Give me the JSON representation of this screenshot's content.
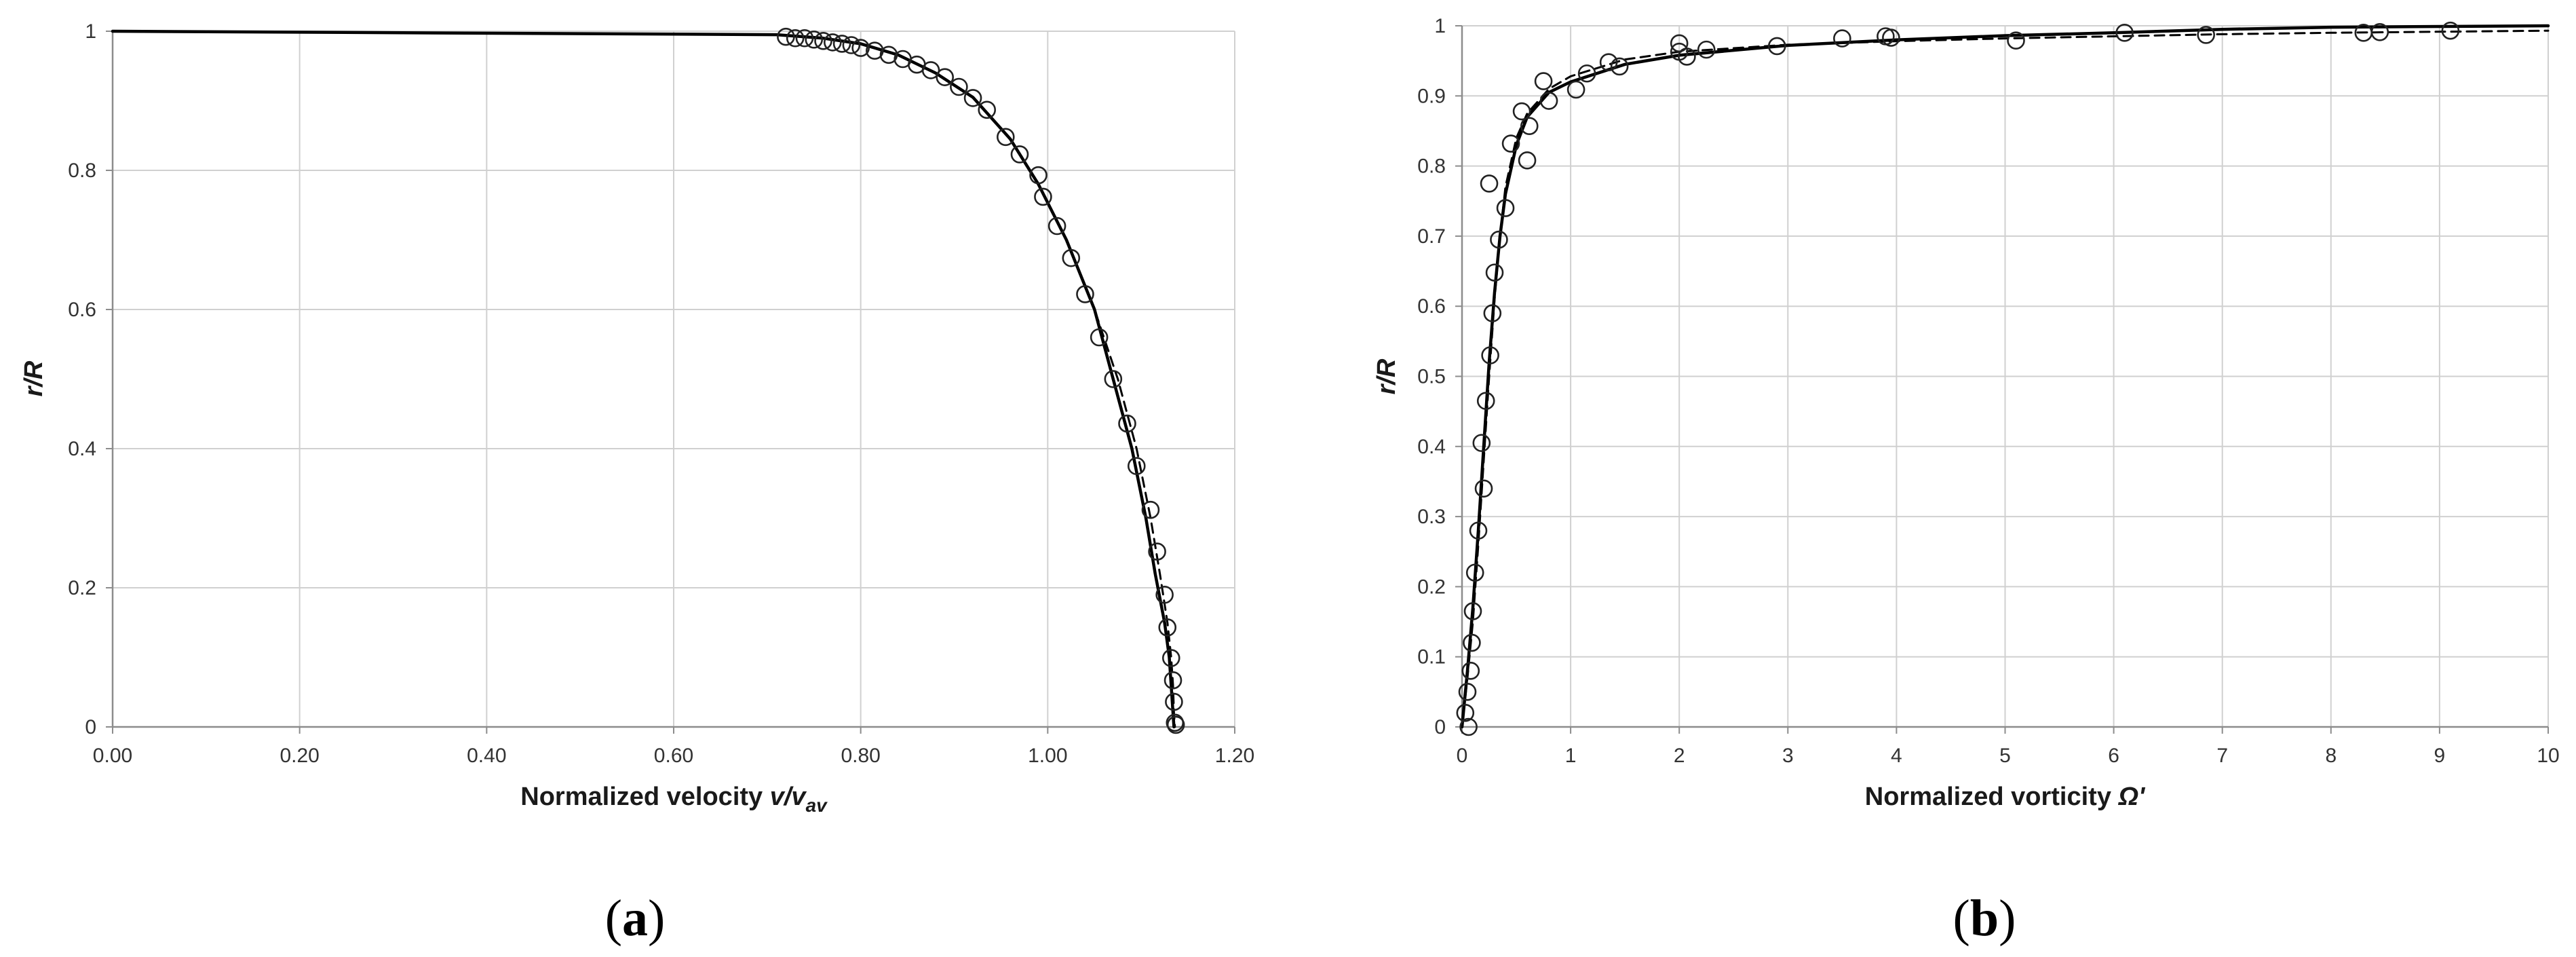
{
  "captions": [
    "(a)",
    "(b)"
  ],
  "chart_data": [
    {
      "type": "line",
      "panel": "a",
      "xlabel": "Normalized velocity ",
      "xlabel_italic": "v/v",
      "xlabel_sub": "av",
      "ylabel": "r/R",
      "xlim": [
        0,
        1.2
      ],
      "ylim": [
        0,
        1
      ],
      "xticks": [
        "0.00",
        "0.20",
        "0.40",
        "0.60",
        "0.80",
        "1.00",
        "1.20"
      ],
      "xtick_values": [
        0,
        0.2,
        0.4,
        0.6,
        0.8,
        1.0,
        1.2
      ],
      "yticks": [
        "0",
        "0.2",
        "0.4",
        "0.6",
        "0.8",
        "1"
      ],
      "ytick_values": [
        0,
        0.2,
        0.4,
        0.6,
        0.8,
        1.0
      ],
      "grid": true,
      "series": [
        {
          "style": "solid",
          "x": [
            0,
            0.71,
            0.76,
            0.8,
            0.84,
            0.88,
            0.92,
            0.96,
            0.99,
            1.02,
            1.05,
            1.07,
            1.09,
            1.105,
            1.115,
            1.125,
            1.13,
            1.132,
            1.134,
            1.135
          ],
          "y": [
            1.0,
            0.995,
            0.99,
            0.982,
            0.966,
            0.94,
            0.905,
            0.845,
            0.78,
            0.7,
            0.6,
            0.5,
            0.4,
            0.3,
            0.22,
            0.15,
            0.1,
            0.06,
            0.02,
            0.0
          ]
        },
        {
          "style": "dashed",
          "x": [
            0,
            0.71,
            0.76,
            0.8,
            0.84,
            0.88,
            0.92,
            0.96,
            0.99,
            1.02,
            1.05,
            1.075,
            1.095,
            1.11,
            1.12,
            1.128,
            1.132,
            1.134,
            1.135,
            1.136
          ],
          "y": [
            1.0,
            0.995,
            0.99,
            0.982,
            0.966,
            0.94,
            0.905,
            0.845,
            0.78,
            0.7,
            0.6,
            0.5,
            0.4,
            0.3,
            0.22,
            0.15,
            0.1,
            0.06,
            0.02,
            0.0
          ]
        },
        {
          "style": "markers",
          "x": [
            0.72,
            0.73,
            0.74,
            0.75,
            0.76,
            0.77,
            0.78,
            0.79,
            0.8,
            0.815,
            0.83,
            0.845,
            0.86,
            0.875,
            0.89,
            0.905,
            0.92,
            0.935,
            0.955,
            0.97,
            0.99,
            0.995,
            1.01,
            1.025,
            1.04,
            1.055,
            1.07,
            1.085,
            1.095,
            1.11,
            1.117,
            1.125,
            1.128,
            1.132,
            1.134,
            1.135,
            1.136,
            1.137
          ],
          "y": [
            0.992,
            0.99,
            0.99,
            0.988,
            0.986,
            0.984,
            0.982,
            0.98,
            0.976,
            0.972,
            0.966,
            0.96,
            0.952,
            0.944,
            0.934,
            0.92,
            0.904,
            0.887,
            0.848,
            0.823,
            0.793,
            0.762,
            0.72,
            0.674,
            0.622,
            0.56,
            0.5,
            0.436,
            0.375,
            0.312,
            0.252,
            0.19,
            0.143,
            0.099,
            0.067,
            0.036,
            0.006,
            0.003
          ]
        }
      ]
    },
    {
      "type": "line",
      "panel": "b",
      "xlabel": "Normalized vorticity ",
      "xlabel_italic": "Ω'",
      "ylabel": "r/R",
      "xlim": [
        0,
        10
      ],
      "ylim": [
        0,
        1
      ],
      "xticks": [
        "0",
        "1",
        "2",
        "3",
        "4",
        "5",
        "6",
        "7",
        "8",
        "9",
        "10"
      ],
      "xtick_values": [
        0,
        1,
        2,
        3,
        4,
        5,
        6,
        7,
        8,
        9,
        10
      ],
      "yticks": [
        "0",
        "0.1",
        "0.2",
        "0.3",
        "0.4",
        "0.5",
        "0.6",
        "0.7",
        "0.8",
        "0.9",
        "1"
      ],
      "ytick_values": [
        0,
        0.1,
        0.2,
        0.3,
        0.4,
        0.5,
        0.6,
        0.7,
        0.8,
        0.9,
        1.0
      ],
      "grid": true,
      "series": [
        {
          "style": "solid",
          "x": [
            0,
            0.05,
            0.1,
            0.15,
            0.2,
            0.25,
            0.3,
            0.35,
            0.4,
            0.5,
            0.6,
            0.8,
            1.0,
            1.5,
            2.0,
            3.0,
            4.0,
            5.0,
            6.0,
            7.0,
            8.0,
            10.0
          ],
          "y": [
            0,
            0.08,
            0.17,
            0.28,
            0.4,
            0.52,
            0.62,
            0.7,
            0.76,
            0.83,
            0.87,
            0.905,
            0.92,
            0.945,
            0.958,
            0.972,
            0.98,
            0.986,
            0.99,
            0.995,
            0.998,
            1.0
          ]
        },
        {
          "style": "dashed",
          "x": [
            0,
            0.05,
            0.1,
            0.15,
            0.2,
            0.25,
            0.3,
            0.35,
            0.4,
            0.5,
            0.6,
            0.8,
            1.0,
            1.5,
            2.0,
            3.0,
            4.0,
            5.0,
            6.0,
            7.0,
            8.0,
            10.0
          ],
          "y": [
            0,
            0.07,
            0.15,
            0.26,
            0.38,
            0.5,
            0.61,
            0.7,
            0.77,
            0.84,
            0.875,
            0.91,
            0.928,
            0.952,
            0.963,
            0.973,
            0.978,
            0.982,
            0.985,
            0.988,
            0.99,
            0.993
          ]
        },
        {
          "style": "markers",
          "x": [
            0.03,
            0.05,
            0.06,
            0.08,
            0.09,
            0.1,
            0.12,
            0.15,
            0.18,
            0.2,
            0.22,
            0.25,
            0.26,
            0.28,
            0.3,
            0.34,
            0.4,
            0.45,
            0.55,
            0.6,
            0.62,
            0.75,
            0.8,
            1.05,
            1.15,
            1.35,
            1.45,
            2.0,
            2.0,
            2.07,
            2.25,
            2.9,
            3.5,
            3.9,
            3.95,
            5.1,
            6.1,
            6.85,
            8.3,
            8.45,
            9.1
          ],
          "y": [
            0.02,
            0.05,
            0.0,
            0.08,
            0.12,
            0.165,
            0.22,
            0.28,
            0.405,
            0.34,
            0.465,
            0.775,
            0.53,
            0.59,
            0.648,
            0.695,
            0.74,
            0.832,
            0.878,
            0.808,
            0.857,
            0.921,
            0.893,
            0.909,
            0.932,
            0.948,
            0.942,
            0.963,
            0.975,
            0.956,
            0.966,
            0.971,
            0.982,
            0.985,
            0.983,
            0.979,
            0.99,
            0.987,
            0.99,
            0.991,
            0.993
          ]
        }
      ]
    }
  ]
}
